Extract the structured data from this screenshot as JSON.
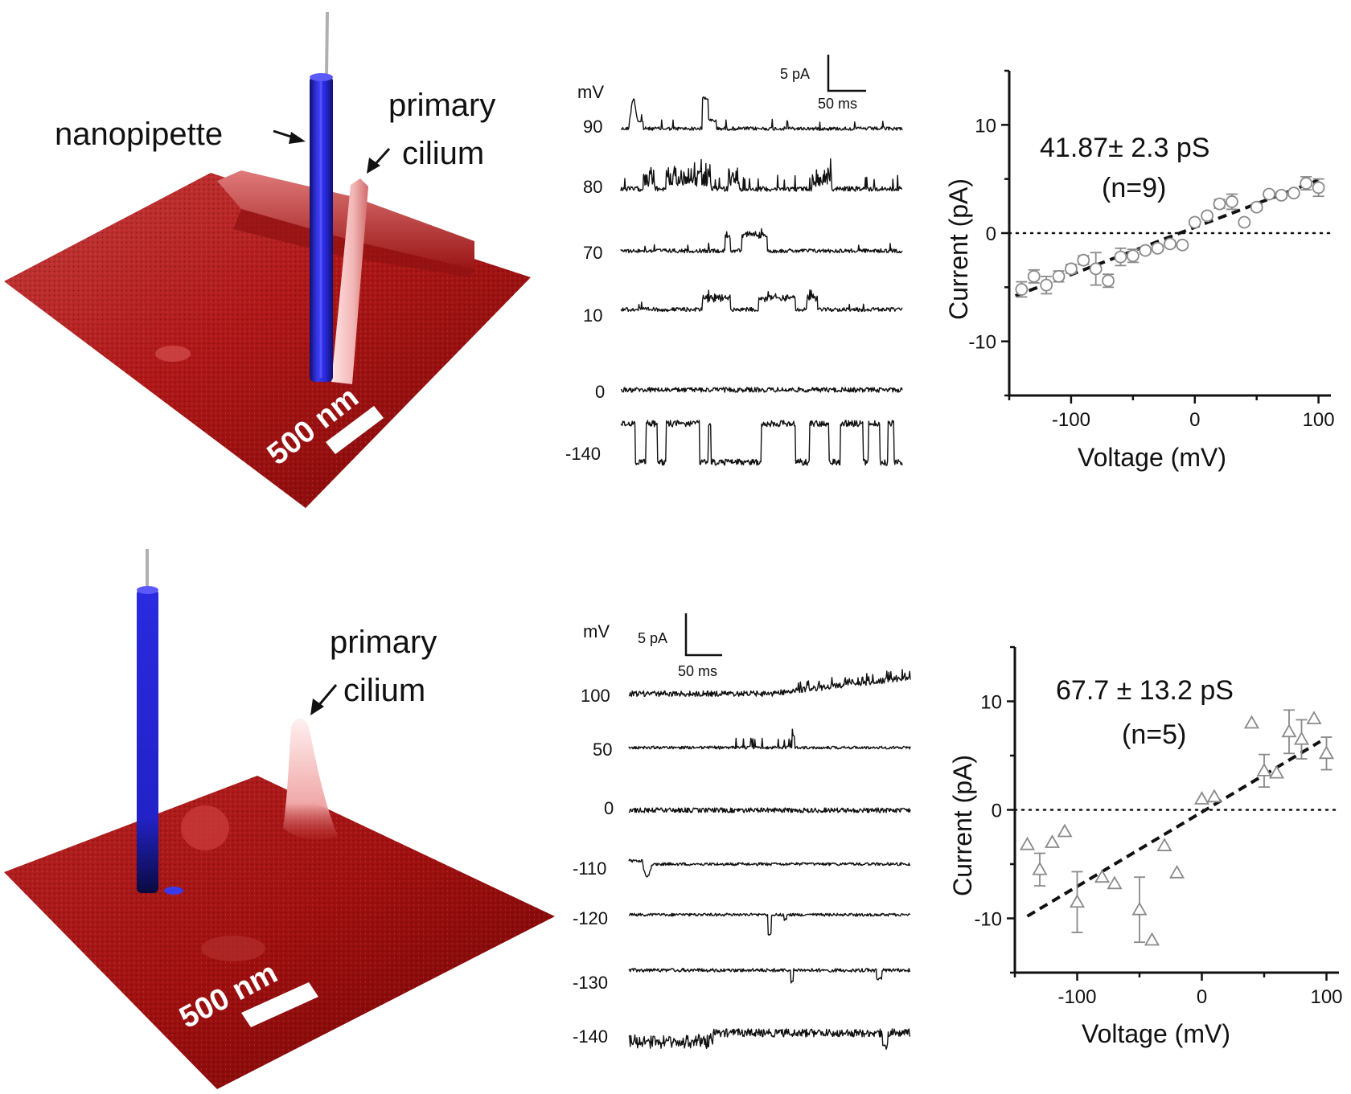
{
  "panels": [
    {
      "surface": {
        "label_pipette": "nanopipette",
        "label_cilium_line1": "primary",
        "label_cilium_line2": "cilium",
        "scalebar": "500 nm"
      },
      "traces": {
        "unit_label": "mV",
        "scale_current": "5 pA",
        "scale_time": "50 ms",
        "rows": [
          {
            "voltage": "90",
            "pattern": "spikes_up"
          },
          {
            "voltage": "80",
            "pattern": "bursts_up"
          },
          {
            "voltage": "70",
            "pattern": "step_up"
          },
          {
            "voltage": "10",
            "pattern": "plateau_up"
          },
          {
            "voltage": "0",
            "pattern": "flat"
          },
          {
            "voltage": "-140",
            "pattern": "large_steps_down"
          }
        ]
      }
    },
    {
      "surface": {
        "label_cilium_line1": "primary",
        "label_cilium_line2": "cilium",
        "scalebar": "500 nm"
      },
      "traces": {
        "unit_label": "mV",
        "scale_current": "5 pA",
        "scale_time": "50 ms",
        "rows": [
          {
            "voltage": "100",
            "pattern": "noisy_rise"
          },
          {
            "voltage": "50",
            "pattern": "small_spikes_up"
          },
          {
            "voltage": "0",
            "pattern": "flat"
          },
          {
            "voltage": "-110",
            "pattern": "one_dip"
          },
          {
            "voltage": "-120",
            "pattern": "one_dip_mid"
          },
          {
            "voltage": "-130",
            "pattern": "small_dips"
          },
          {
            "voltage": "-140",
            "pattern": "noisy_down"
          }
        ]
      }
    }
  ],
  "chart_data": [
    {
      "type": "scatter",
      "xlabel": "Voltage (mV)",
      "ylabel": "Current (pA)",
      "xlim": [
        -150,
        110
      ],
      "ylim": [
        -15,
        15
      ],
      "xticks": [
        -100,
        0,
        100
      ],
      "yticks": [
        -10,
        0,
        10
      ],
      "annotation": "41.87± 2.3 pS",
      "annotation2": "(n=9)",
      "marker": "circle",
      "points": [
        {
          "x": -140,
          "y": -5.2,
          "err": 0.7
        },
        {
          "x": -130,
          "y": -4.0,
          "err": 0.6
        },
        {
          "x": -120,
          "y": -4.8,
          "err": 0.8
        },
        {
          "x": -110,
          "y": -4.0,
          "err": 0.5
        },
        {
          "x": -100,
          "y": -3.3,
          "err": 0.4
        },
        {
          "x": -90,
          "y": -2.5,
          "err": 0.4
        },
        {
          "x": -80,
          "y": -3.3,
          "err": 1.5
        },
        {
          "x": -70,
          "y": -4.4,
          "err": 0.6
        },
        {
          "x": -60,
          "y": -2.2,
          "err": 0.8
        },
        {
          "x": -50,
          "y": -2.1,
          "err": 0.6
        },
        {
          "x": -40,
          "y": -1.6,
          "err": 0.3
        },
        {
          "x": -30,
          "y": -1.4,
          "err": 0.3
        },
        {
          "x": -20,
          "y": -1.0,
          "err": 0.3
        },
        {
          "x": -10,
          "y": -1.1,
          "err": 0.2
        },
        {
          "x": 0,
          "y": 1.0,
          "err": 0.2
        },
        {
          "x": 10,
          "y": 1.6,
          "err": 0.2
        },
        {
          "x": 20,
          "y": 2.7,
          "err": 0.4
        },
        {
          "x": 30,
          "y": 2.9,
          "err": 0.7
        },
        {
          "x": 40,
          "y": 1.0,
          "err": 0.2
        },
        {
          "x": 50,
          "y": 2.4,
          "err": 0.3
        },
        {
          "x": 60,
          "y": 3.6,
          "err": 0.2
        },
        {
          "x": 70,
          "y": 3.5,
          "err": 0.3
        },
        {
          "x": 80,
          "y": 3.7,
          "err": 0.2
        },
        {
          "x": 90,
          "y": 4.6,
          "err": 0.6
        },
        {
          "x": 100,
          "y": 4.2,
          "err": 0.8
        }
      ],
      "fit": {
        "x": [
          -145,
          100
        ],
        "y": [
          -5.8,
          4.9
        ]
      }
    },
    {
      "type": "scatter",
      "xlabel": "Voltage (mV)",
      "ylabel": "Current (pA)",
      "xlim": [
        -150,
        110
      ],
      "ylim": [
        -15,
        15
      ],
      "xticks": [
        -100,
        0,
        100
      ],
      "yticks": [
        -10,
        0,
        10
      ],
      "annotation": "67.7 ± 13.2 pS",
      "annotation2": "(n=5)",
      "marker": "triangle",
      "points": [
        {
          "x": -140,
          "y": -3.2,
          "err": 0
        },
        {
          "x": -130,
          "y": -5.5,
          "err": 1.5
        },
        {
          "x": -120,
          "y": -3.0,
          "err": 0
        },
        {
          "x": -110,
          "y": -2.0,
          "err": 0
        },
        {
          "x": -100,
          "y": -8.5,
          "err": 2.8
        },
        {
          "x": -80,
          "y": -6.2,
          "err": 0
        },
        {
          "x": -70,
          "y": -6.8,
          "err": 0
        },
        {
          "x": -50,
          "y": -9.2,
          "err": 3.0
        },
        {
          "x": -40,
          "y": -12.0,
          "err": 0
        },
        {
          "x": -30,
          "y": -3.3,
          "err": 0
        },
        {
          "x": -20,
          "y": -5.8,
          "err": 0
        },
        {
          "x": 0,
          "y": 1.0,
          "err": 0
        },
        {
          "x": 10,
          "y": 1.2,
          "err": 0
        },
        {
          "x": 40,
          "y": 8.0,
          "err": 0
        },
        {
          "x": 50,
          "y": 3.6,
          "err": 1.5
        },
        {
          "x": 60,
          "y": 3.4,
          "err": 0
        },
        {
          "x": 70,
          "y": 7.2,
          "err": 2.0
        },
        {
          "x": 80,
          "y": 6.5,
          "err": 1.8
        },
        {
          "x": 90,
          "y": 8.4,
          "err": 0
        },
        {
          "x": 100,
          "y": 5.2,
          "err": 1.5
        }
      ],
      "fit": {
        "x": [
          -140,
          95
        ],
        "y": [
          -9.8,
          6.3
        ]
      }
    }
  ],
  "colors": {
    "surface_dark": "#8e0a0a",
    "surface_mid": "#c01d1d",
    "surface_light": "#e05050",
    "cilium_light": "#f6c6c6",
    "pipette": "#2626d6",
    "marker_gray": "#8a8a8a",
    "trace": "#111111"
  }
}
